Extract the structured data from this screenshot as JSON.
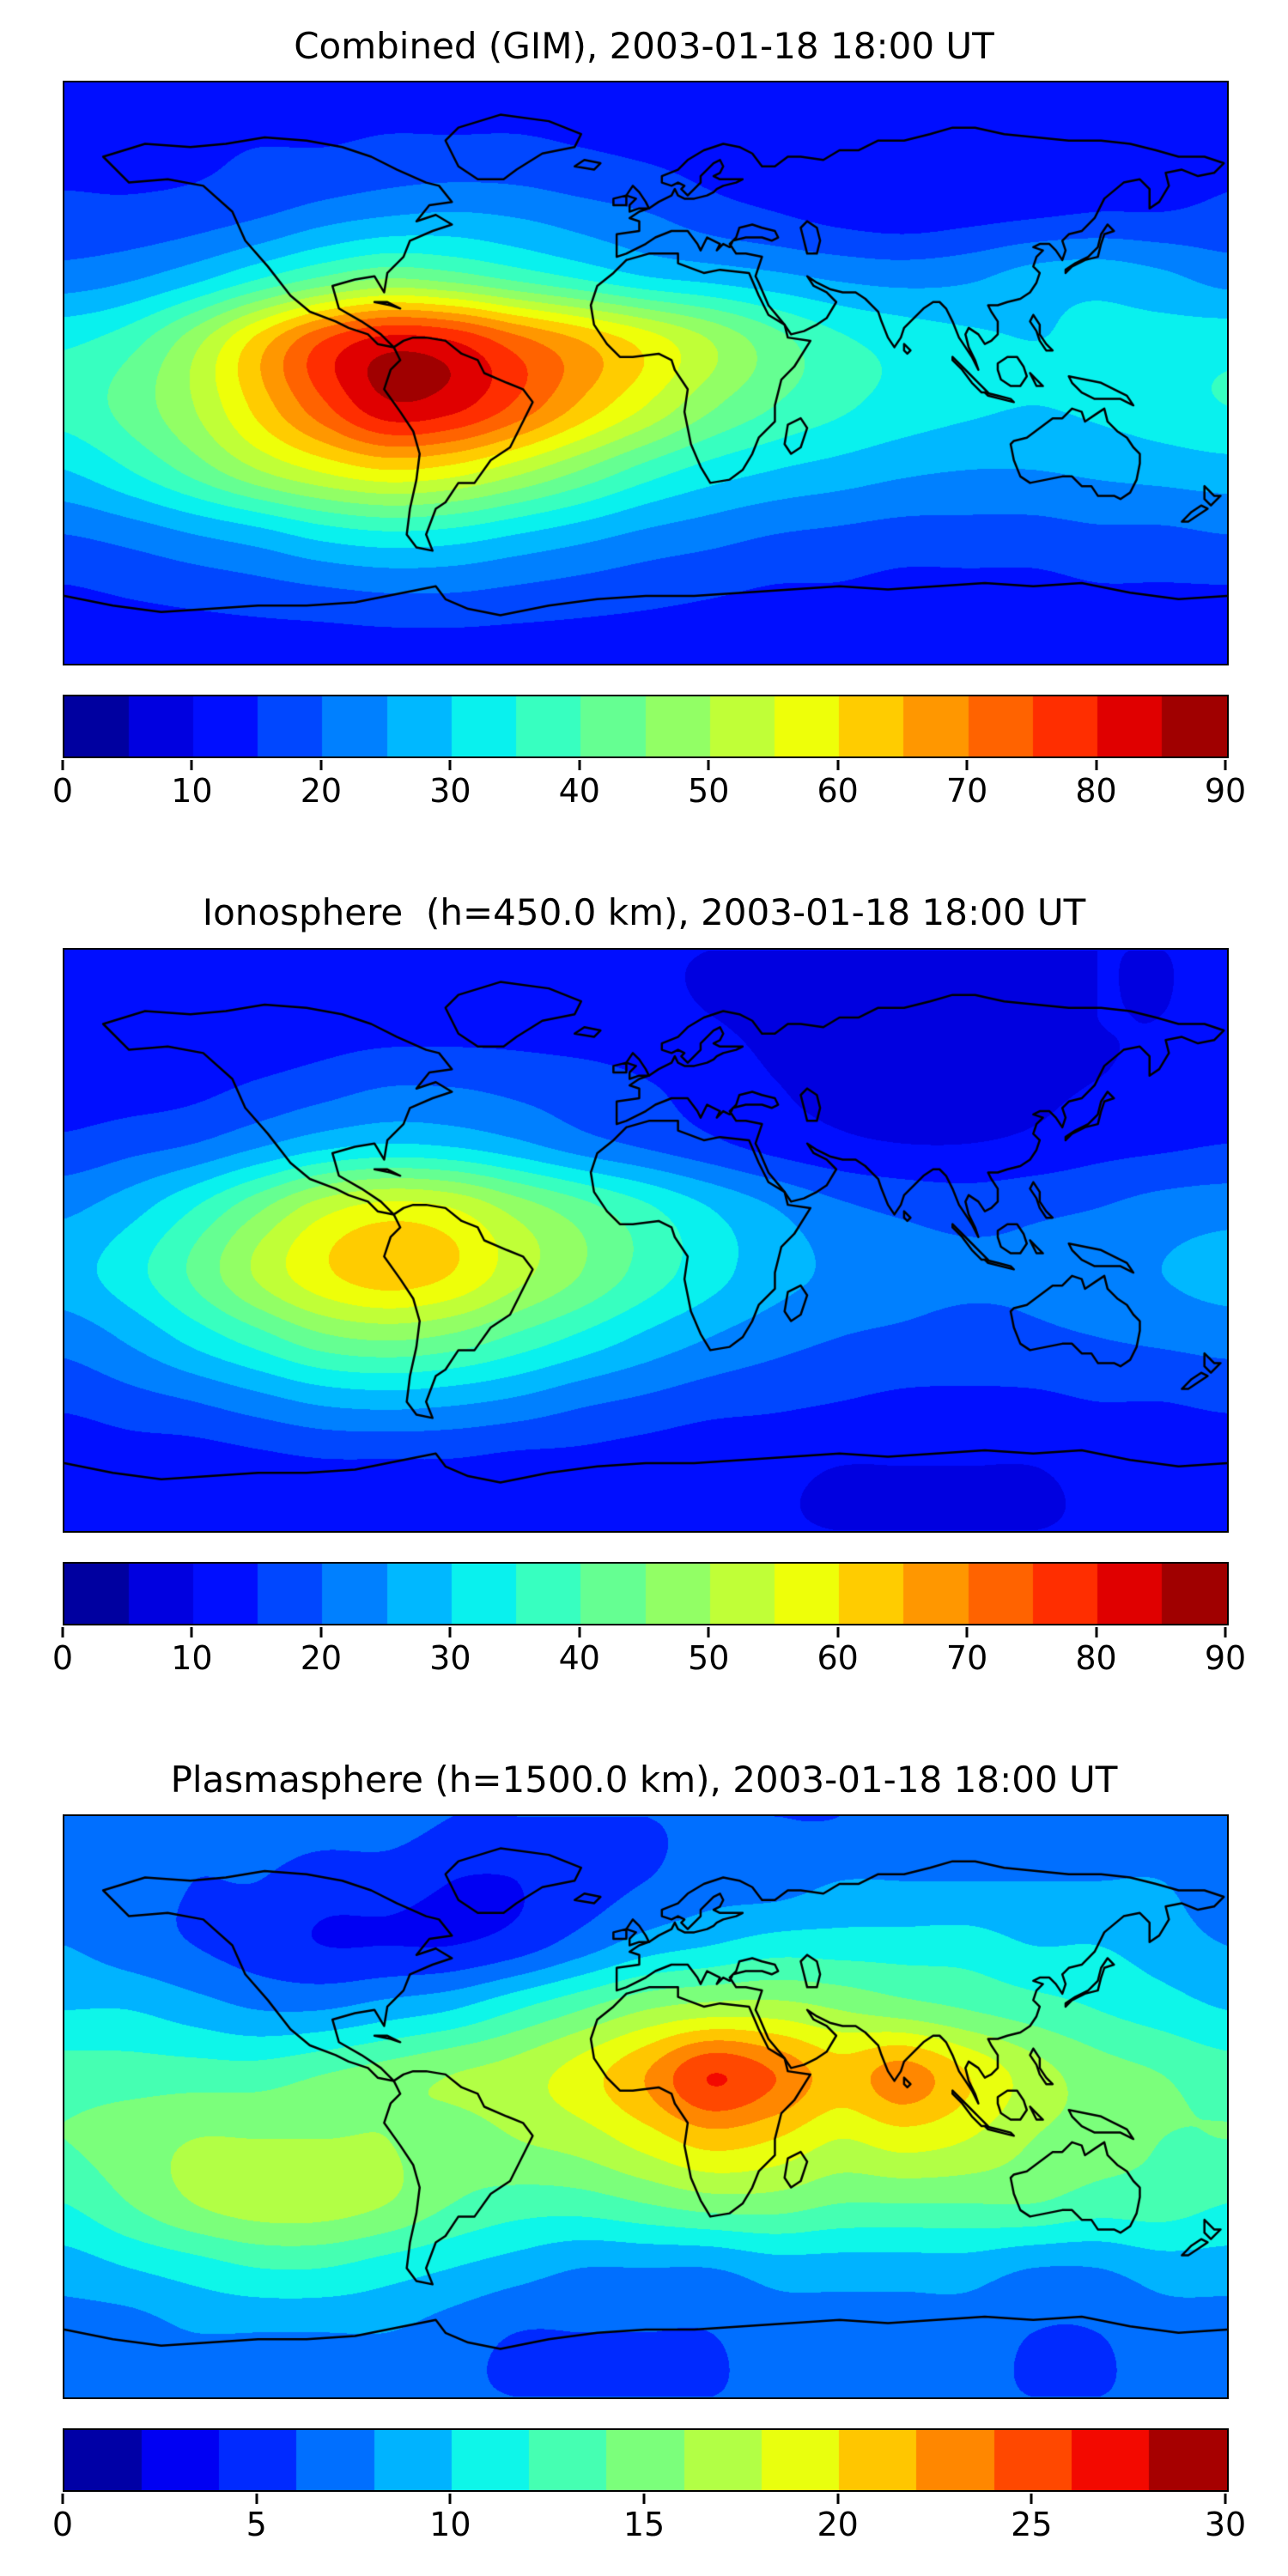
{
  "figure": {
    "background_color": "#ffffff",
    "text_color": "#000000",
    "coastline_color": "#000000"
  },
  "chart_data": [
    {
      "type": "heatmap",
      "title": "Combined (GIM), 2003-01-18 18:00 UT",
      "date": "2003-01-18",
      "time_ut": "18:00",
      "x_axis": "longitude_deg",
      "x_range": [
        -180,
        180
      ],
      "y_axis": "latitude_deg",
      "y_range": [
        -90,
        90
      ],
      "colormap": "jet",
      "levels_min": 0,
      "levels_max": 90,
      "level_step": 5,
      "colorbar_ticks": [
        0,
        10,
        20,
        30,
        40,
        50,
        60,
        70,
        80,
        90
      ],
      "lon_grid": [
        -180,
        -160,
        -140,
        -120,
        -100,
        -80,
        -60,
        -40,
        -20,
        0,
        20,
        40,
        60,
        80,
        100,
        120,
        140,
        160,
        180
      ],
      "lat_grid": [
        90,
        70,
        50,
        30,
        10,
        -10,
        -30,
        -50,
        -70,
        -90
      ],
      "values": [
        [
          13,
          13,
          13,
          13,
          13,
          13,
          13,
          13,
          13,
          13,
          13,
          13,
          13,
          13,
          13,
          13,
          13,
          13,
          13
        ],
        [
          14,
          14,
          14,
          15,
          15,
          16,
          16,
          16,
          15,
          14,
          13,
          12,
          12,
          12,
          12,
          12,
          13,
          13,
          14
        ],
        [
          16,
          16,
          17,
          19,
          22,
          24,
          25,
          24,
          22,
          20,
          17,
          15,
          13,
          12,
          13,
          14,
          15,
          15,
          16
        ],
        [
          22,
          24,
          28,
          34,
          40,
          44,
          42,
          38,
          34,
          30,
          28,
          26,
          24,
          23,
          24,
          27,
          28,
          26,
          23
        ],
        [
          34,
          38,
          48,
          62,
          75,
          82,
          80,
          72,
          65,
          58,
          50,
          42,
          36,
          33,
          31,
          30,
          31,
          32,
          33
        ],
        [
          37,
          42,
          50,
          62,
          74,
          84,
          82,
          74,
          64,
          55,
          46,
          40,
          36,
          33,
          31,
          30,
          31,
          33,
          35
        ],
        [
          30,
          35,
          42,
          50,
          56,
          60,
          58,
          52,
          45,
          38,
          33,
          30,
          28,
          26,
          25,
          25,
          26,
          27,
          28
        ],
        [
          20,
          22,
          25,
          28,
          32,
          34,
          33,
          30,
          27,
          24,
          22,
          20,
          19,
          18,
          18,
          18,
          19,
          19,
          20
        ],
        [
          14,
          15,
          16,
          17,
          18,
          19,
          19,
          18,
          17,
          16,
          15,
          14,
          14,
          13,
          13,
          13,
          14,
          14,
          14
        ],
        [
          12,
          12,
          12,
          12,
          12,
          12,
          12,
          12,
          12,
          12,
          12,
          12,
          12,
          12,
          12,
          12,
          12,
          12,
          12
        ]
      ]
    },
    {
      "type": "heatmap",
      "title": "Ionosphere  (h=450.0 km), 2003-01-18 18:00 UT",
      "date": "2003-01-18",
      "time_ut": "18:00",
      "height_km": 450.0,
      "x_axis": "longitude_deg",
      "x_range": [
        -180,
        180
      ],
      "y_axis": "latitude_deg",
      "y_range": [
        -90,
        90
      ],
      "colormap": "jet",
      "levels_min": 0,
      "levels_max": 90,
      "level_step": 5,
      "colorbar_ticks": [
        0,
        10,
        20,
        30,
        40,
        50,
        60,
        70,
        80,
        90
      ],
      "lon_grid": [
        -180,
        -160,
        -140,
        -120,
        -100,
        -80,
        -60,
        -40,
        -20,
        0,
        20,
        40,
        60,
        80,
        100,
        120,
        140,
        160,
        180
      ],
      "lat_grid": [
        90,
        70,
        50,
        30,
        10,
        -10,
        -30,
        -50,
        -70,
        -90
      ],
      "values": [
        [
          10,
          10,
          10,
          10,
          10,
          10,
          10,
          10,
          10,
          10,
          10,
          10,
          10,
          10,
          10,
          10,
          10,
          10,
          10
        ],
        [
          11,
          11,
          11,
          11,
          12,
          12,
          12,
          12,
          11,
          11,
          10,
          9,
          9,
          9,
          9,
          9,
          10,
          10,
          11
        ],
        [
          12,
          12,
          13,
          15,
          17,
          19,
          19,
          18,
          17,
          15,
          13,
          10,
          9,
          8,
          8,
          9,
          10,
          11,
          12
        ],
        [
          16,
          18,
          20,
          24,
          28,
          30,
          29,
          26,
          22,
          19,
          16,
          13,
          11,
          10,
          10,
          11,
          13,
          14,
          15
        ],
        [
          24,
          28,
          35,
          44,
          53,
          57,
          55,
          48,
          42,
          36,
          30,
          25,
          21,
          19,
          18,
          19,
          20,
          22,
          23
        ],
        [
          28,
          33,
          41,
          51,
          59,
          63,
          60,
          52,
          45,
          38,
          32,
          27,
          24,
          22,
          21,
          21,
          23,
          25,
          27
        ],
        [
          22,
          26,
          32,
          38,
          44,
          46,
          44,
          39,
          34,
          29,
          25,
          22,
          20,
          19,
          18,
          19,
          20,
          21,
          22
        ],
        [
          16,
          18,
          20,
          23,
          26,
          27,
          26,
          24,
          21,
          19,
          17,
          16,
          15,
          14,
          14,
          14,
          15,
          15,
          16
        ],
        [
          11,
          12,
          12,
          13,
          14,
          14,
          14,
          13,
          13,
          12,
          11,
          11,
          10,
          10,
          10,
          10,
          11,
          11,
          11
        ],
        [
          10,
          10,
          10,
          10,
          10,
          10,
          10,
          10,
          10,
          10,
          10,
          10,
          10,
          10,
          10,
          10,
          10,
          10,
          10
        ]
      ]
    },
    {
      "type": "heatmap",
      "title": "Plasmasphere (h=1500.0 km), 2003-01-18 18:00 UT",
      "date": "2003-01-18",
      "time_ut": "18:00",
      "height_km": 1500.0,
      "x_axis": "longitude_deg",
      "x_range": [
        -180,
        180
      ],
      "y_axis": "latitude_deg",
      "y_range": [
        -90,
        90
      ],
      "colormap": "jet",
      "levels_min": 0,
      "levels_max": 30,
      "level_step": 2,
      "colorbar_ticks": [
        0,
        5,
        10,
        15,
        20,
        25,
        30
      ],
      "lon_grid": [
        -180,
        -160,
        -140,
        -120,
        -100,
        -80,
        -60,
        -40,
        -20,
        0,
        20,
        40,
        60,
        80,
        100,
        120,
        140,
        160,
        180
      ],
      "lat_grid": [
        90,
        70,
        50,
        30,
        10,
        -10,
        -30,
        -50,
        -70,
        -90
      ],
      "values": [
        [
          7,
          7,
          7,
          7,
          7,
          7,
          6,
          6,
          6,
          6,
          6,
          6,
          6,
          7,
          7,
          7,
          7,
          7,
          7
        ],
        [
          7,
          7,
          6,
          6,
          5,
          5,
          4,
          4,
          5,
          6,
          7,
          7,
          8,
          8,
          8,
          8,
          8,
          8,
          7
        ],
        [
          8,
          7,
          6,
          5,
          4,
          4,
          4,
          5,
          7,
          9,
          10,
          11,
          11,
          11,
          11,
          10,
          10,
          9,
          8
        ],
        [
          10,
          10,
          9,
          8,
          8,
          9,
          10,
          12,
          14,
          16,
          17,
          17,
          16,
          15,
          14,
          13,
          12,
          11,
          10
        ],
        [
          13,
          13,
          13,
          13,
          14,
          15,
          16,
          17,
          19,
          22,
          26,
          24,
          21,
          23,
          20,
          17,
          15,
          14,
          13
        ],
        [
          14,
          15,
          16,
          16,
          16,
          16,
          15,
          16,
          17,
          19,
          21,
          20,
          18,
          19,
          18,
          16,
          15,
          14,
          14
        ],
        [
          12,
          14,
          16,
          17,
          17,
          16,
          14,
          13,
          13,
          14,
          15,
          15,
          14,
          14,
          14,
          14,
          13,
          13,
          12
        ],
        [
          9,
          10,
          11,
          12,
          12,
          11,
          10,
          9,
          8,
          8,
          8,
          9,
          9,
          9,
          9,
          8,
          8,
          9,
          9
        ],
        [
          7,
          7,
          8,
          8,
          8,
          8,
          7,
          6,
          6,
          6,
          6,
          7,
          7,
          7,
          7,
          6,
          6,
          7,
          7
        ],
        [
          6,
          6,
          6,
          6,
          6,
          6,
          6,
          6,
          6,
          6,
          6,
          6,
          6,
          6,
          6,
          6,
          6,
          6,
          6
        ]
      ]
    }
  ]
}
